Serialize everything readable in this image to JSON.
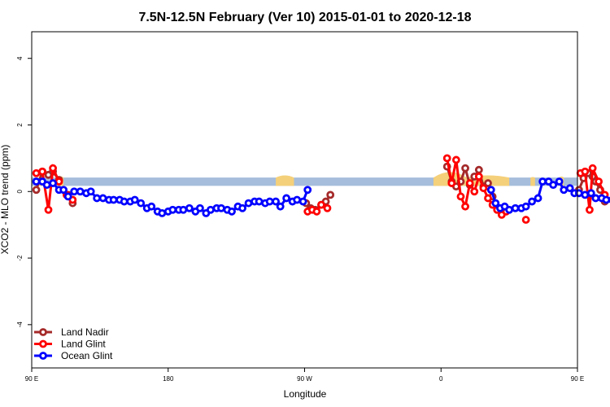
{
  "chart_data": {
    "type": "line",
    "title": "7.5N-12.5N February (Ver 10)   2015-01-01 to 2020-12-18",
    "xlabel": "Longitude",
    "ylabel": "XCO2 - MLO trend (ppm)",
    "xlim": [
      90,
      450
    ],
    "ylim": [
      -5.3,
      4.8
    ],
    "x_ticks": [
      {
        "value": 90,
        "label": "90 E"
      },
      {
        "value": 180,
        "label": "180"
      },
      {
        "value": 270,
        "label": "90 W"
      },
      {
        "value": 360,
        "label": "0"
      },
      {
        "value": 450,
        "label": "90 E"
      },
      {
        "value": 540,
        "label": "180"
      }
    ],
    "y_ticks": [
      -4,
      -2,
      0,
      2,
      4
    ],
    "grid": false,
    "legend_position": "bottom-left",
    "background": {
      "band_color": "#a6bddb",
      "band_y": [
        0.17,
        0.42
      ],
      "land_color": "#f5d07a"
    },
    "series": [
      {
        "name": "Land Nadir",
        "color": "#a52a2a",
        "segments": [
          [
            [
              93,
              0.05
            ],
            [
              97,
              0.6
            ],
            [
              101,
              0.5
            ],
            [
              104,
              0.6
            ],
            [
              108,
              0.35
            ]
          ],
          [
            [
              114,
              -0.1
            ],
            [
              117,
              -0.35
            ]
          ],
          [
            [
              271,
              -0.35
            ],
            [
              274,
              -0.5
            ],
            [
              277,
              -0.55
            ],
            [
              281,
              -0.4
            ],
            [
              284,
              -0.3
            ],
            [
              287,
              -0.1
            ]
          ],
          [
            [
              364,
              0.75
            ],
            [
              367,
              0.3
            ],
            [
              370,
              0.15
            ],
            [
              373,
              0.3
            ],
            [
              376,
              0.7
            ],
            [
              379,
              0.2
            ],
            [
              382,
              0.45
            ],
            [
              385,
              0.65
            ],
            [
              388,
              0.15
            ],
            [
              391,
              0.25
            ],
            [
              394,
              -0.15
            ]
          ],
          [
            [
              451,
              0.05
            ],
            [
              454,
              0.4
            ],
            [
              457,
              0.55
            ],
            [
              460,
              0.45
            ],
            [
              462,
              0.3
            ],
            [
              465,
              0.05
            ],
            [
              468,
              -0.3
            ]
          ]
        ]
      },
      {
        "name": "Land Glint",
        "color": "#ff0000",
        "segments": [
          [
            [
              93,
              0.55
            ],
            [
              97,
              0.6
            ],
            [
              101,
              -0.55
            ],
            [
              104,
              0.7
            ],
            [
              108,
              0.3
            ]
          ],
          [
            [
              113,
              -0.1
            ],
            [
              117,
              -0.25
            ]
          ],
          [
            [
              272,
              -0.6
            ],
            [
              275,
              -0.55
            ],
            [
              278,
              -0.6
            ],
            [
              281,
              -0.4
            ],
            [
              285,
              -0.5
            ]
          ],
          [
            [
              364,
              1.0
            ],
            [
              367,
              0.25
            ],
            [
              370,
              0.95
            ],
            [
              373,
              -0.15
            ],
            [
              376,
              -0.45
            ],
            [
              379,
              0.25
            ],
            [
              382,
              0.0
            ],
            [
              385,
              0.45
            ],
            [
              388,
              0.1
            ],
            [
              391,
              -0.2
            ],
            [
              394,
              -0.4
            ],
            [
              397,
              -0.55
            ],
            [
              400,
              -0.7
            ],
            [
              403,
              -0.6
            ]
          ],
          [
            [
              416,
              -0.85
            ]
          ],
          [
            [
              452,
              0.55
            ],
            [
              455,
              0.6
            ],
            [
              458,
              -0.55
            ],
            [
              460,
              0.7
            ],
            [
              464,
              0.3
            ],
            [
              468,
              -0.1
            ]
          ]
        ]
      },
      {
        "name": "Ocean Glint",
        "color": "#0000ff",
        "segments": [
          [
            [
              93,
              0.3
            ],
            [
              97,
              0.3
            ],
            [
              100,
              0.2
            ],
            [
              104,
              0.25
            ],
            [
              108,
              0.05
            ],
            [
              111,
              0.05
            ],
            [
              114,
              -0.15
            ],
            [
              118,
              0.0
            ],
            [
              122,
              0.0
            ],
            [
              126,
              -0.05
            ],
            [
              129,
              0.0
            ],
            [
              133,
              -0.2
            ],
            [
              137,
              -0.2
            ],
            [
              141,
              -0.25
            ],
            [
              144,
              -0.25
            ],
            [
              148,
              -0.25
            ],
            [
              151,
              -0.3
            ],
            [
              155,
              -0.3
            ],
            [
              158,
              -0.25
            ],
            [
              162,
              -0.35
            ],
            [
              166,
              -0.5
            ],
            [
              169,
              -0.45
            ],
            [
              173,
              -0.6
            ],
            [
              176,
              -0.65
            ],
            [
              180,
              -0.6
            ],
            [
              183,
              -0.55
            ],
            [
              187,
              -0.55
            ],
            [
              190,
              -0.55
            ],
            [
              194,
              -0.5
            ],
            [
              198,
              -0.6
            ],
            [
              201,
              -0.5
            ],
            [
              205,
              -0.65
            ],
            [
              208,
              -0.55
            ],
            [
              212,
              -0.5
            ],
            [
              215,
              -0.5
            ],
            [
              219,
              -0.55
            ],
            [
              222,
              -0.6
            ],
            [
              226,
              -0.45
            ],
            [
              229,
              -0.5
            ],
            [
              233,
              -0.35
            ],
            [
              237,
              -0.3
            ],
            [
              240,
              -0.3
            ],
            [
              244,
              -0.35
            ],
            [
              247,
              -0.3
            ],
            [
              251,
              -0.3
            ],
            [
              254,
              -0.45
            ],
            [
              258,
              -0.2
            ],
            [
              262,
              -0.3
            ],
            [
              265,
              -0.25
            ],
            [
              269,
              -0.3
            ],
            [
              272,
              0.05
            ]
          ],
          [
            [
              393,
              0.05
            ],
            [
              396,
              -0.35
            ],
            [
              399,
              -0.5
            ],
            [
              402,
              -0.45
            ],
            [
              405,
              -0.55
            ],
            [
              409,
              -0.5
            ],
            [
              413,
              -0.5
            ],
            [
              416,
              -0.45
            ],
            [
              420,
              -0.3
            ],
            [
              424,
              -0.2
            ],
            [
              427,
              0.3
            ],
            [
              431,
              0.3
            ],
            [
              434,
              0.2
            ],
            [
              438,
              0.3
            ],
            [
              441,
              0.05
            ],
            [
              445,
              0.1
            ],
            [
              448,
              -0.05
            ],
            [
              451,
              -0.05
            ],
            [
              455,
              -0.1
            ],
            [
              459,
              -0.05
            ],
            [
              462,
              -0.2
            ],
            [
              466,
              -0.2
            ],
            [
              469,
              -0.25
            ],
            [
              473,
              -0.25
            ],
            [
              476,
              -0.3
            ],
            [
              480,
              -0.35
            ],
            [
              483,
              -0.3
            ]
          ]
        ]
      }
    ]
  }
}
